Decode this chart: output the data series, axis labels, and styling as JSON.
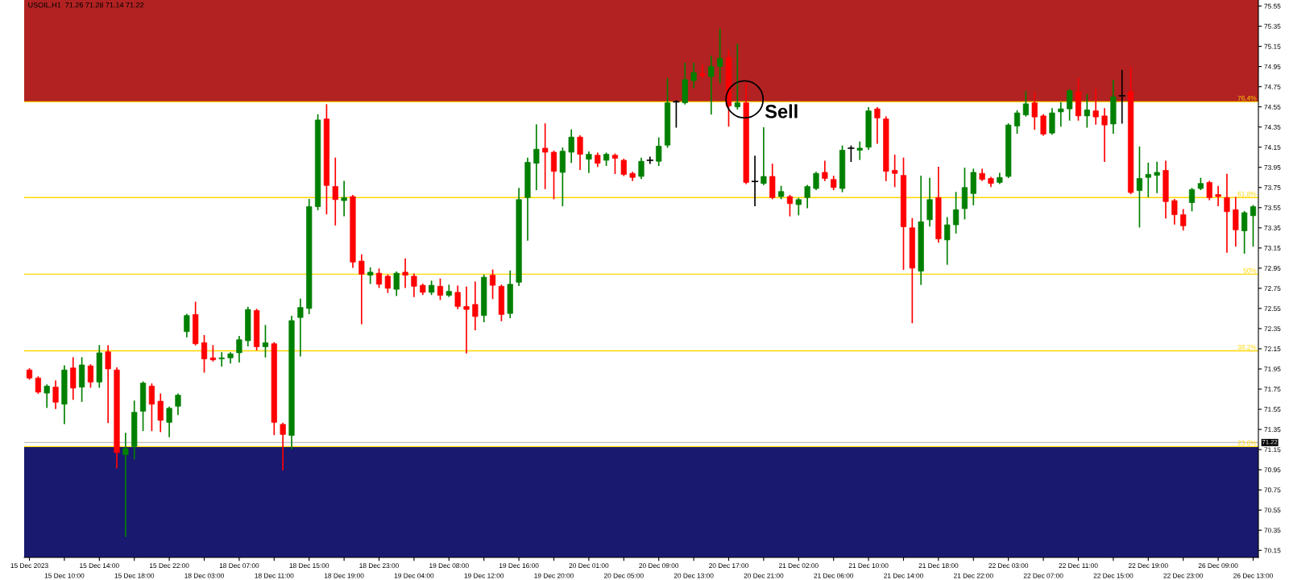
{
  "chart_data": {
    "type": "candlestick",
    "title": "USOIL,H1  71.26 71.28 71.14 71.22",
    "categories": [
      "15 Dec 2023",
      null,
      null,
      null,
      "15 Dec 10:00",
      null,
      null,
      null,
      "15 Dec 14:00",
      null,
      null,
      null,
      "15 Dec 18:00",
      null,
      null,
      null,
      "15 Dec 22:00",
      null,
      null,
      null,
      "18 Dec 03:00",
      null,
      null,
      null,
      "18 Dec 07:00",
      null,
      null,
      null,
      "18 Dec 11:00",
      null,
      null,
      null,
      "18 Dec 15:00",
      null,
      null,
      null,
      "18 Dec 19:00",
      null,
      null,
      null,
      "18 Dec 23:00",
      null,
      null,
      null,
      "19 Dec 04:00",
      null,
      null,
      null,
      "19 Dec 08:00",
      null,
      null,
      null,
      "19 Dec 12:00",
      null,
      null,
      null,
      "19 Dec 16:00",
      null,
      null,
      null,
      "19 Dec 20:00",
      null,
      null,
      null,
      "20 Dec 01:00",
      null,
      null,
      null,
      "20 Dec 05:00",
      null,
      null,
      null,
      "20 Dec 09:00",
      null,
      null,
      null,
      "20 Dec 13:00",
      null,
      null,
      null,
      "20 Dec 17:00",
      null,
      null,
      null,
      "20 Dec 21:00",
      null,
      null,
      null,
      "21 Dec 02:00",
      null,
      null,
      null,
      "21 Dec 06:00",
      null,
      null,
      null,
      "21 Dec 10:00",
      null,
      null,
      null,
      "21 Dec 14:00",
      null,
      null,
      null,
      "21 Dec 18:00",
      null,
      null,
      null,
      "21 Dec 22:00",
      null,
      null,
      null,
      "22 Dec 03:00",
      null,
      null,
      null,
      "22 Dec 07:00",
      null,
      null,
      null,
      "22 Dec 11:00",
      null,
      null,
      null,
      "22 Dec 15:00",
      null,
      null,
      null,
      "22 Dec 19:00",
      null,
      null,
      null,
      "22 Dec 23:00",
      null,
      null,
      null,
      "26 Dec 09:00",
      null,
      null,
      null,
      "26 Dec 13:00"
    ],
    "ohlc": [
      [
        71.94,
        71.95,
        71.85,
        71.86
      ],
      [
        71.86,
        71.87,
        71.71,
        71.72
      ],
      [
        71.71,
        71.79,
        71.57,
        71.78
      ],
      [
        71.77,
        71.83,
        71.56,
        71.62
      ],
      [
        71.6,
        71.98,
        71.41,
        71.94
      ],
      [
        71.96,
        72.06,
        71.65,
        71.76
      ],
      [
        71.77,
        72.06,
        71.63,
        71.99
      ],
      [
        71.98,
        71.99,
        71.77,
        71.82
      ],
      [
        71.82,
        72.18,
        71.77,
        72.11
      ],
      [
        72.12,
        72.18,
        71.42,
        71.95
      ],
      [
        71.94,
        71.96,
        70.97,
        71.12
      ],
      [
        71.1,
        71.31,
        70.29,
        71.16
      ],
      [
        71.18,
        71.63,
        71.06,
        71.52
      ],
      [
        71.53,
        71.82,
        71.34,
        71.81
      ],
      [
        71.78,
        71.8,
        71.34,
        71.6
      ],
      [
        71.63,
        71.7,
        71.33,
        71.44
      ],
      [
        71.42,
        71.57,
        71.28,
        71.56
      ],
      [
        71.58,
        71.7,
        71.5,
        71.69
      ],
      [
        72.32,
        72.49,
        72.27,
        72.48
      ],
      [
        72.49,
        72.61,
        72.19,
        72.2
      ],
      [
        72.21,
        72.28,
        71.92,
        72.05
      ],
      [
        72.06,
        72.18,
        72.03,
        72.04
      ],
      [
        72.05,
        72.11,
        71.98,
        72.06
      ],
      [
        72.06,
        72.11,
        72.01,
        72.1
      ],
      [
        72.11,
        72.27,
        72.02,
        72.24
      ],
      [
        72.23,
        72.56,
        72.18,
        72.54
      ],
      [
        72.53,
        72.54,
        72.14,
        72.17
      ],
      [
        72.17,
        72.38,
        72.07,
        72.21
      ],
      [
        72.2,
        72.21,
        71.3,
        71.42
      ],
      [
        71.4,
        71.41,
        70.95,
        71.3
      ],
      [
        71.29,
        72.47,
        71.16,
        72.43
      ],
      [
        72.46,
        72.64,
        72.08,
        72.56
      ],
      [
        72.55,
        73.63,
        72.5,
        73.56
      ],
      [
        73.56,
        74.47,
        73.53,
        74.42
      ],
      [
        74.43,
        74.57,
        73.49,
        73.77
      ],
      [
        73.76,
        74.04,
        73.38,
        73.63
      ],
      [
        73.62,
        73.81,
        73.47,
        73.65
      ],
      [
        73.66,
        73.67,
        72.96,
        73.01
      ],
      [
        73.02,
        73.08,
        72.4,
        72.89
      ],
      [
        72.88,
        72.95,
        72.8,
        72.91
      ],
      [
        72.9,
        72.94,
        72.76,
        72.79
      ],
      [
        72.87,
        72.88,
        72.71,
        72.75
      ],
      [
        72.74,
        72.91,
        72.68,
        72.9
      ],
      [
        72.91,
        73.04,
        72.76,
        72.88
      ],
      [
        72.87,
        72.89,
        72.67,
        72.77
      ],
      [
        72.78,
        72.79,
        72.69,
        72.71
      ],
      [
        72.71,
        72.82,
        72.69,
        72.78
      ],
      [
        72.77,
        72.84,
        72.64,
        72.68
      ],
      [
        72.68,
        72.78,
        72.67,
        72.72
      ],
      [
        72.71,
        72.77,
        72.55,
        72.57
      ],
      [
        72.57,
        72.76,
        72.11,
        72.54
      ],
      [
        72.59,
        72.81,
        72.34,
        72.47
      ],
      [
        72.48,
        72.88,
        72.42,
        72.86
      ],
      [
        72.88,
        72.93,
        72.65,
        72.78
      ],
      [
        72.77,
        72.78,
        72.43,
        72.49
      ],
      [
        72.5,
        72.92,
        72.46,
        72.79
      ],
      [
        72.81,
        73.74,
        72.78,
        73.63
      ],
      [
        73.65,
        74.04,
        73.23,
        74.0
      ],
      [
        73.99,
        74.37,
        73.73,
        74.13
      ],
      [
        74.14,
        74.38,
        73.74,
        74.1
      ],
      [
        74.1,
        74.11,
        73.64,
        73.91
      ],
      [
        73.9,
        74.14,
        73.57,
        74.11
      ],
      [
        74.1,
        74.32,
        74.0,
        74.25
      ],
      [
        74.25,
        74.26,
        73.93,
        74.08
      ],
      [
        74.03,
        74.1,
        73.9,
        74.08
      ],
      [
        74.07,
        74.09,
        73.96,
        73.99
      ],
      [
        74.02,
        74.09,
        73.97,
        74.08
      ],
      [
        74.07,
        74.08,
        73.89,
        74.04
      ],
      [
        74.02,
        74.03,
        73.87,
        73.88
      ],
      [
        73.89,
        73.9,
        73.82,
        73.85
      ],
      [
        73.86,
        74.04,
        73.84,
        74.01
      ],
      [
        74.02,
        74.05,
        73.99,
        74.02
      ],
      [
        74.01,
        74.24,
        73.97,
        74.16
      ],
      [
        74.17,
        74.83,
        74.15,
        74.59
      ],
      [
        74.6,
        74.61,
        74.35,
        74.6
      ],
      [
        74.59,
        74.98,
        74.58,
        74.82
      ],
      [
        74.81,
        74.98,
        74.74,
        74.89
      ],
      [
        74.88,
        74.96,
        74.84,
        74.86
      ],
      [
        74.85,
        75.05,
        74.48,
        74.95
      ],
      [
        74.95,
        75.32,
        74.79,
        75.03
      ],
      [
        75.04,
        75.11,
        74.36,
        74.56
      ],
      [
        74.55,
        75.17,
        74.53,
        74.59
      ],
      [
        74.59,
        74.78,
        73.79,
        73.8
      ],
      [
        73.81,
        74.06,
        73.57,
        73.81
      ],
      [
        73.79,
        74.34,
        73.78,
        73.86
      ],
      [
        73.86,
        73.98,
        73.64,
        73.65
      ],
      [
        73.66,
        73.76,
        73.64,
        73.71
      ],
      [
        73.66,
        73.67,
        73.47,
        73.59
      ],
      [
        73.58,
        73.64,
        73.48,
        73.63
      ],
      [
        73.65,
        73.77,
        73.55,
        73.76
      ],
      [
        73.74,
        73.9,
        73.73,
        73.89
      ],
      [
        73.9,
        74.01,
        73.82,
        73.84
      ],
      [
        73.83,
        73.86,
        73.73,
        73.75
      ],
      [
        73.74,
        74.16,
        73.71,
        74.12
      ],
      [
        74.14,
        74.16,
        74.01,
        74.14
      ],
      [
        74.12,
        74.2,
        74.03,
        74.14
      ],
      [
        74.15,
        74.54,
        74.13,
        74.51
      ],
      [
        74.53,
        74.54,
        74.19,
        74.44
      ],
      [
        74.43,
        74.45,
        73.82,
        73.91
      ],
      [
        73.92,
        74.07,
        73.76,
        73.89
      ],
      [
        73.87,
        74.04,
        72.94,
        73.36
      ],
      [
        73.35,
        73.44,
        72.41,
        72.95
      ],
      [
        72.92,
        73.86,
        72.79,
        73.41
      ],
      [
        73.43,
        73.84,
        73.37,
        73.63
      ],
      [
        73.65,
        73.95,
        73.21,
        73.24
      ],
      [
        73.23,
        73.45,
        72.99,
        73.38
      ],
      [
        73.38,
        73.7,
        73.3,
        73.53
      ],
      [
        73.54,
        73.94,
        73.44,
        73.75
      ],
      [
        73.69,
        73.93,
        73.58,
        73.9
      ],
      [
        73.89,
        73.93,
        73.82,
        73.83
      ],
      [
        73.84,
        73.85,
        73.76,
        73.79
      ],
      [
        73.8,
        73.89,
        73.79,
        73.85
      ],
      [
        73.86,
        74.38,
        73.85,
        74.37
      ],
      [
        74.36,
        74.51,
        74.29,
        74.49
      ],
      [
        74.47,
        74.7,
        74.46,
        74.58
      ],
      [
        74.59,
        74.69,
        74.33,
        74.45
      ],
      [
        74.46,
        74.47,
        74.27,
        74.28
      ],
      [
        74.29,
        74.53,
        74.28,
        74.49
      ],
      [
        74.5,
        74.59,
        74.36,
        74.53
      ],
      [
        74.53,
        74.72,
        74.42,
        74.71
      ],
      [
        74.7,
        74.83,
        74.42,
        74.46
      ],
      [
        74.46,
        74.67,
        74.35,
        74.52
      ],
      [
        74.51,
        74.72,
        74.38,
        74.45
      ],
      [
        74.46,
        74.53,
        74.01,
        74.37
      ],
      [
        74.38,
        74.81,
        74.29,
        74.65
      ],
      [
        74.66,
        74.91,
        74.39,
        74.66
      ],
      [
        74.7,
        74.94,
        73.69,
        73.7
      ],
      [
        73.72,
        74.15,
        73.36,
        73.84
      ],
      [
        73.85,
        73.99,
        73.66,
        73.88
      ],
      [
        73.87,
        74.0,
        73.7,
        73.9
      ],
      [
        73.92,
        74.01,
        73.45,
        73.61
      ],
      [
        73.62,
        73.63,
        73.39,
        73.48
      ],
      [
        73.48,
        73.53,
        73.33,
        73.37
      ],
      [
        73.6,
        73.74,
        73.52,
        73.73
      ],
      [
        73.74,
        73.84,
        73.73,
        73.79
      ],
      [
        73.8,
        73.81,
        73.63,
        73.65
      ],
      [
        73.68,
        73.76,
        73.57,
        73.66
      ],
      [
        73.65,
        73.88,
        73.11,
        73.51
      ],
      [
        73.53,
        73.65,
        73.17,
        73.33
      ],
      [
        73.32,
        73.51,
        73.1,
        73.5
      ],
      [
        73.47,
        73.57,
        73.17,
        73.56
      ]
    ],
    "colors": [
      "#ff0000",
      "#ff0000",
      "#008000",
      "#ff0000",
      "#008000",
      "#ff0000",
      "#008000",
      "#ff0000",
      "#008000",
      "#ff0000",
      "#ff0000",
      "#008000",
      "#008000",
      "#008000",
      "#ff0000",
      "#ff0000",
      "#008000",
      "#008000",
      "#008000",
      "#ff0000",
      "#ff0000",
      "#ff0000",
      "#008000",
      "#008000",
      "#008000",
      "#008000",
      "#ff0000",
      "#008000",
      "#ff0000",
      "#ff0000",
      "#008000",
      "#008000",
      "#008000",
      "#008000",
      "#ff0000",
      "#ff0000",
      "#008000",
      "#ff0000",
      "#ff0000",
      "#008000",
      "#ff0000",
      "#ff0000",
      "#008000",
      "#ff0000",
      "#ff0000",
      "#ff0000",
      "#008000",
      "#ff0000",
      "#008000",
      "#ff0000",
      "#ff0000",
      "#ff0000",
      "#008000",
      "#ff0000",
      "#ff0000",
      "#008000",
      "#008000",
      "#008000",
      "#008000",
      "#ff0000",
      "#ff0000",
      "#008000",
      "#008000",
      "#ff0000",
      "#008000",
      "#ff0000",
      "#008000",
      "#ff0000",
      "#ff0000",
      "#ff0000",
      "#008000",
      "#000000",
      "#008000",
      "#008000",
      "#000000",
      "#008000",
      "#008000",
      "#ff0000",
      "#008000",
      "#008000",
      "#ff0000",
      "#008000",
      "#ff0000",
      "#000000",
      "#008000",
      "#ff0000",
      "#008000",
      "#ff0000",
      "#008000",
      "#008000",
      "#008000",
      "#ff0000",
      "#ff0000",
      "#008000",
      "#000000",
      "#008000",
      "#008000",
      "#ff0000",
      "#ff0000",
      "#ff0000",
      "#ff0000",
      "#ff0000",
      "#008000",
      "#008000",
      "#ff0000",
      "#008000",
      "#008000",
      "#008000",
      "#008000",
      "#ff0000",
      "#ff0000",
      "#008000",
      "#008000",
      "#008000",
      "#008000",
      "#ff0000",
      "#ff0000",
      "#008000",
      "#008000",
      "#008000",
      "#ff0000",
      "#008000",
      "#ff0000",
      "#ff0000",
      "#008000",
      "#000000",
      "#ff0000",
      "#008000",
      "#008000",
      "#008000",
      "#ff0000",
      "#ff0000",
      "#ff0000",
      "#008000",
      "#008000",
      "#ff0000",
      "#ff0000",
      "#ff0000",
      "#ff0000",
      "#008000",
      "#008000"
    ],
    "ylim": [
      70.08,
      75.61
    ],
    "yticks": [
      75.55,
      75.35,
      75.15,
      74.95,
      74.75,
      74.55,
      74.35,
      74.15,
      73.95,
      73.75,
      73.55,
      73.35,
      73.15,
      72.95,
      72.75,
      72.55,
      72.35,
      72.15,
      71.95,
      71.75,
      71.55,
      71.35,
      71.15,
      70.95,
      70.75,
      70.55,
      70.35,
      70.15
    ],
    "bands": [
      {
        "axis": "y",
        "from": 74.6,
        "to": 75.61,
        "color": "#b22222"
      },
      {
        "axis": "y",
        "from": 70.08,
        "to": 71.18,
        "color": "#191970"
      }
    ],
    "ref_lines": [
      {
        "axis": "y",
        "value": 74.6,
        "color": "#ffd700"
      },
      {
        "axis": "y",
        "value": 73.65,
        "color": "#ffd700"
      },
      {
        "axis": "y",
        "value": 72.89,
        "color": "#ffd700"
      },
      {
        "axis": "y",
        "value": 72.13,
        "color": "#ffd700"
      },
      {
        "axis": "y",
        "value": 71.18,
        "color": "#ffd700"
      },
      {
        "axis": "y",
        "value": 71.22,
        "label": "71.22",
        "color": "#c0c0c0"
      }
    ],
    "annotations": [
      {
        "text": "76.4%",
        "y": 74.6
      },
      {
        "text": "61.8%",
        "y": 73.65
      },
      {
        "text": "50%",
        "y": 72.89
      },
      {
        "text": "38.2%",
        "y": 72.13
      },
      {
        "text": "23.6%",
        "y": 71.18
      },
      {
        "text": "Sell",
        "y": 74.6
      }
    ]
  }
}
